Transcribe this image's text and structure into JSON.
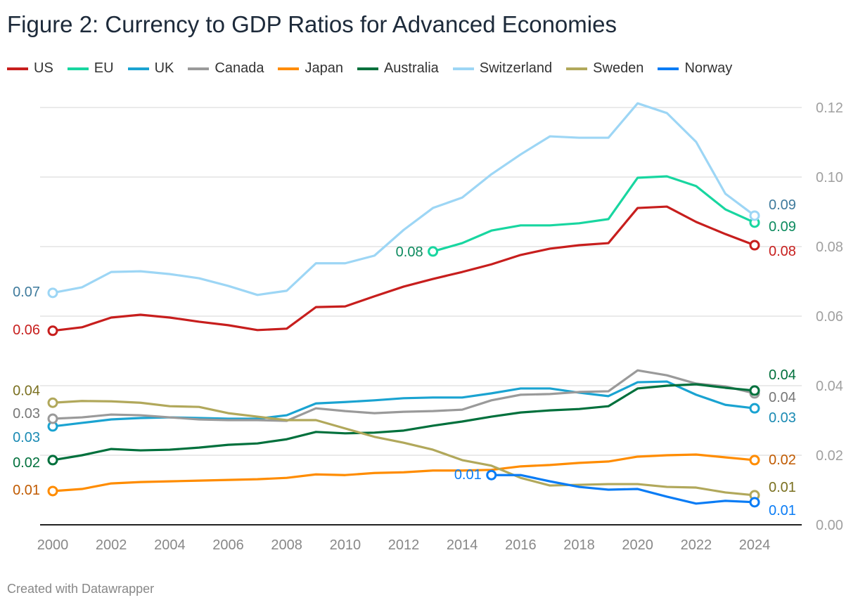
{
  "title": "Figure 2: Currency to GDP Ratios for Advanced Economies",
  "footer": "Created with Datawrapper",
  "chart_data": {
    "type": "line",
    "title": "Figure 2: Currency to GDP Ratios for Advanced Economies",
    "x_ticks": [
      "2000",
      "2002",
      "2004",
      "2006",
      "2008",
      "2010",
      "2012",
      "2014",
      "2016",
      "2018",
      "2020",
      "2022",
      "2024"
    ],
    "y_ticks": [
      "0.00",
      "0.02",
      "0.04",
      "0.06",
      "0.08",
      "0.10",
      "0.12"
    ],
    "xlim": [
      2000,
      2024
    ],
    "ylim": [
      0,
      0.12
    ],
    "y_axis_side": "right",
    "grid": true,
    "legend_placement": "top",
    "x": [
      2000,
      2001,
      2002,
      2003,
      2004,
      2005,
      2006,
      2007,
      2008,
      2009,
      2010,
      2011,
      2012,
      2013,
      2014,
      2015,
      2016,
      2017,
      2018,
      2019,
      2020,
      2021,
      2022,
      2023,
      2024
    ],
    "series": [
      {
        "name": "US",
        "color": "#c71e1d",
        "label_color": "#c71e1d",
        "start_label": "0.06",
        "end_label": "0.08",
        "values": [
          0.0558,
          0.0568,
          0.0596,
          0.0604,
          0.0596,
          0.0584,
          0.0574,
          0.056,
          0.0564,
          0.0626,
          0.0628,
          0.0657,
          0.0685,
          0.0707,
          0.0727,
          0.0749,
          0.0776,
          0.0794,
          0.0804,
          0.081,
          0.0911,
          0.0915,
          0.0871,
          0.0836,
          0.0804
        ]
      },
      {
        "name": "EU",
        "color": "#18d6a0",
        "label_color": "#0c8a5e",
        "start_label": "0.08",
        "end_label": "0.09",
        "values": [
          null,
          null,
          null,
          null,
          null,
          null,
          null,
          null,
          null,
          null,
          null,
          null,
          null,
          0.0786,
          0.081,
          0.0846,
          0.0861,
          0.0861,
          0.0867,
          0.0879,
          0.0998,
          0.1002,
          0.0974,
          0.0907,
          0.0869
        ]
      },
      {
        "name": "UK",
        "color": "#1aa3d1",
        "label_color": "#1a8ab3",
        "start_label": "0.03",
        "end_label": "0.03",
        "values": [
          0.0283,
          0.0293,
          0.0303,
          0.0307,
          0.0309,
          0.0307,
          0.0305,
          0.0305,
          0.0315,
          0.0349,
          0.0353,
          0.0358,
          0.0364,
          0.0366,
          0.0366,
          0.0378,
          0.0392,
          0.0392,
          0.038,
          0.037,
          0.041,
          0.0412,
          0.0374,
          0.0345,
          0.0335
        ]
      },
      {
        "name": "Canada",
        "color": "#9a9a9a",
        "label_color": "#777777",
        "start_label": "0.03",
        "end_label": "0.04",
        "values": [
          0.0305,
          0.0309,
          0.0317,
          0.0315,
          0.0309,
          0.0303,
          0.0301,
          0.0301,
          0.0299,
          0.0335,
          0.0327,
          0.0321,
          0.0325,
          0.0327,
          0.0331,
          0.0358,
          0.0374,
          0.0376,
          0.0382,
          0.0384,
          0.0444,
          0.043,
          0.0406,
          0.0398,
          0.0378
        ]
      },
      {
        "name": "Japan",
        "color": "#ff8c00",
        "label_color": "#c05a00",
        "start_label": "0.01",
        "end_label": "0.02",
        "values": [
          0.0097,
          0.0103,
          0.0119,
          0.0123,
          0.0125,
          0.0127,
          0.0129,
          0.0131,
          0.0135,
          0.0145,
          0.0143,
          0.0149,
          0.0151,
          0.0156,
          0.0156,
          0.0158,
          0.0168,
          0.0172,
          0.0178,
          0.0182,
          0.0196,
          0.02,
          0.0202,
          0.0194,
          0.0186
        ]
      },
      {
        "name": "Australia",
        "color": "#00703c",
        "label_color": "#00703c",
        "start_label": "0.02",
        "end_label": "0.04",
        "values": [
          0.0186,
          0.02,
          0.0218,
          0.0214,
          0.0216,
          0.0222,
          0.023,
          0.0234,
          0.0246,
          0.0267,
          0.0263,
          0.0265,
          0.0271,
          0.0285,
          0.0297,
          0.0311,
          0.0323,
          0.0329,
          0.0333,
          0.0341,
          0.0392,
          0.04,
          0.0404,
          0.0394,
          0.0386
        ]
      },
      {
        "name": "Switzerland",
        "color": "#9dd6f5",
        "label_color": "#3e7a9c",
        "start_label": "0.07",
        "end_label": "0.09",
        "values": [
          0.0667,
          0.0683,
          0.0727,
          0.0729,
          0.0721,
          0.0709,
          0.0687,
          0.0661,
          0.0673,
          0.0752,
          0.0752,
          0.0774,
          0.0848,
          0.0911,
          0.0941,
          0.1008,
          0.1065,
          0.1117,
          0.1113,
          0.1113,
          0.1212,
          0.1184,
          0.1101,
          0.0952,
          0.0889
        ]
      },
      {
        "name": "Sweden",
        "color": "#b1a85b",
        "label_color": "#7a7020",
        "start_label": "0.04",
        "end_label": "0.01",
        "values": [
          0.0351,
          0.0356,
          0.0355,
          0.0351,
          0.0341,
          0.0339,
          0.0321,
          0.0311,
          0.0301,
          0.0301,
          0.0277,
          0.0253,
          0.0236,
          0.0216,
          0.0186,
          0.017,
          0.0135,
          0.0113,
          0.0115,
          0.0117,
          0.0117,
          0.0109,
          0.0107,
          0.0093,
          0.0085
        ]
      },
      {
        "name": "Norway",
        "color": "#0a7cf5",
        "label_color": "#0a7cf5",
        "start_label": "0.01",
        "end_label": "0.01",
        "values": [
          null,
          null,
          null,
          null,
          null,
          null,
          null,
          null,
          null,
          null,
          null,
          null,
          null,
          null,
          null,
          0.0143,
          0.0143,
          0.0125,
          0.0109,
          0.0101,
          0.0103,
          0.0081,
          0.0061,
          0.0069,
          0.0065
        ]
      }
    ]
  }
}
